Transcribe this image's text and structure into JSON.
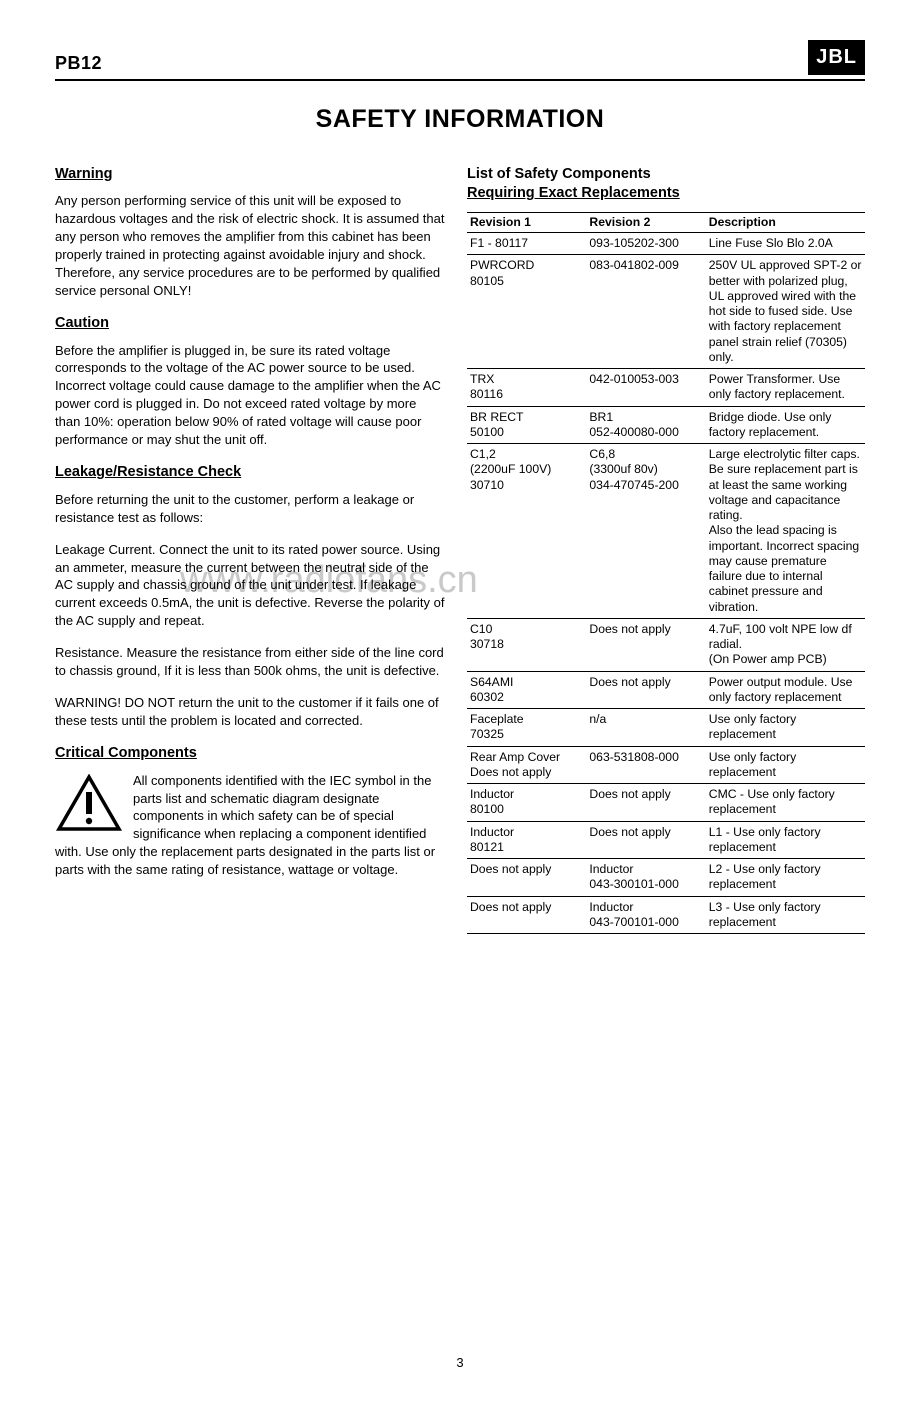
{
  "header": {
    "model": "PB12",
    "logo": "JBL"
  },
  "title": "SAFETY INFORMATION",
  "watermark": "www.radiofans.cn",
  "page_number": "3",
  "left": {
    "warning_h": "Warning",
    "warning_p": "Any person performing service of this unit will be exposed to hazardous voltages and the risk of electric shock. It is assumed that any person who removes the amplifier from this cabinet has been properly trained in protecting against avoidable injury and shock. Therefore, any service procedures are to be performed by qualified service personal ONLY!",
    "caution_h": "Caution",
    "caution_p": "Before the amplifier is plugged in, be sure its rated voltage corresponds to the voltage of the AC power source to be used. Incorrect voltage could cause damage to the amplifier when the AC power cord is plugged in. Do not exceed rated voltage by more than 10%: operation below 90% of rated voltage will cause poor performance or may shut the unit off.",
    "leak_h": "Leakage/Resistance Check",
    "leak_p1": "Before returning the unit to the customer, perform a leakage or resistance test as follows:",
    "leak_p2": "Leakage Current. Connect the unit to its rated power source. Using an ammeter, measure the current between the neutral side of the AC supply and chassis ground of the unit under test. If leakage current exceeds 0.5mA, the unit is defective. Reverse the polarity of the AC supply and repeat.",
    "leak_p3": "Resistance. Measure the resistance from either side of the line cord to chassis ground, If it is less than 500k ohms, the unit is defective.",
    "leak_p4": "WARNING! DO NOT return the unit to the customer if it fails one of these tests until the problem is located and corrected.",
    "crit_h": "Critical Components",
    "crit_p": "All components identified with the IEC symbol in the parts list and schematic diagram designate components in which safety can be of special significance when replacing a component identified with. Use only the replacement parts designated in the parts list or parts with the same rating of resistance, wattage or voltage."
  },
  "right": {
    "heading_line1": "List of Safety Components",
    "heading_line2": "Requiring Exact Replacements",
    "columns": [
      "Revision 1",
      "Revision 2",
      "Description"
    ],
    "rows": [
      [
        "F1 - 80117",
        "093-105202-300",
        "Line Fuse Slo Blo  2.0A"
      ],
      [
        "PWRCORD\n80105",
        "083-041802-009",
        "250V UL approved SPT-2 or better with polarized plug, UL approved wired with the hot side to fused side. Use with factory replacement panel strain relief (70305) only."
      ],
      [
        "TRX\n80116",
        "042-010053-003",
        "Power Transformer. Use only factory replacement."
      ],
      [
        "BR RECT\n50100",
        "BR1\n052-400080-000",
        "Bridge diode. Use only factory replacement."
      ],
      [
        "C1,2\n(2200uF 100V)\n30710",
        "C6,8\n(3300uf 80v)\n034-470745-200",
        "Large electrolytic filter caps. Be sure replacement part is at least the same working voltage and capacitance rating.\nAlso the lead spacing is important. Incorrect spacing may cause premature failure due to internal cabinet pressure and vibration."
      ],
      [
        "C10\n30718",
        "Does not apply",
        "4.7uF, 100 volt NPE low df radial.\n(On Power amp PCB)"
      ],
      [
        "S64AMI\n60302",
        "Does not apply",
        "Power output module. Use only factory replacement"
      ],
      [
        "Faceplate\n70325",
        "n/a",
        "Use only factory replacement"
      ],
      [
        "Rear Amp Cover\nDoes not apply",
        "063-531808-000",
        "Use only factory replacement"
      ],
      [
        "Inductor\n80100",
        "Does not apply",
        "CMC - Use only factory replacement"
      ],
      [
        "Inductor\n80121",
        "Does not apply",
        "L1 - Use only factory replacement"
      ],
      [
        "Does not apply",
        "Inductor\n043-300101-000",
        "L2 - Use only factory replacement"
      ],
      [
        "Does not apply",
        "Inductor\n043-700101-000",
        "L3 - Use only factory replacement"
      ]
    ]
  }
}
